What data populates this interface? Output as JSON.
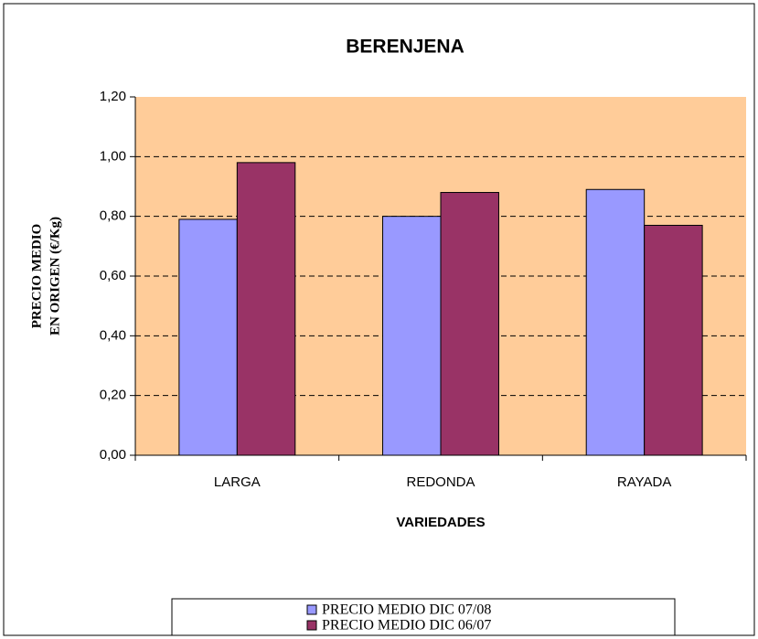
{
  "chart_data": {
    "type": "bar",
    "title": "BERENJENA",
    "xlabel": "VARIEDADES",
    "ylabel": [
      "PRECIO MEDIO",
      "EN ORIGEN (€/Kg)"
    ],
    "categories": [
      "LARGA",
      "REDONDA",
      "RAYADA"
    ],
    "series": [
      {
        "name": "PRECIO MEDIO DIC 07/08",
        "color": "#9999ff",
        "values": [
          0.79,
          0.8,
          0.89
        ]
      },
      {
        "name": "PRECIO MEDIO DIC 06/07",
        "color": "#993366",
        "values": [
          0.98,
          0.88,
          0.77
        ]
      }
    ],
    "ylim": [
      0,
      1.2
    ],
    "yticks": [
      {
        "value": 0,
        "label": "0,00"
      },
      {
        "value": 0.2,
        "label": "0,20"
      },
      {
        "value": 0.4,
        "label": "0,40"
      },
      {
        "value": 0.6,
        "label": "0,60"
      },
      {
        "value": 0.8,
        "label": "0,80"
      },
      {
        "value": 1.0,
        "label": "1,00"
      },
      {
        "value": 1.2,
        "label": "1,20"
      }
    ],
    "grid": true,
    "plot_background": "#ffcc99",
    "legend": "bottom"
  }
}
